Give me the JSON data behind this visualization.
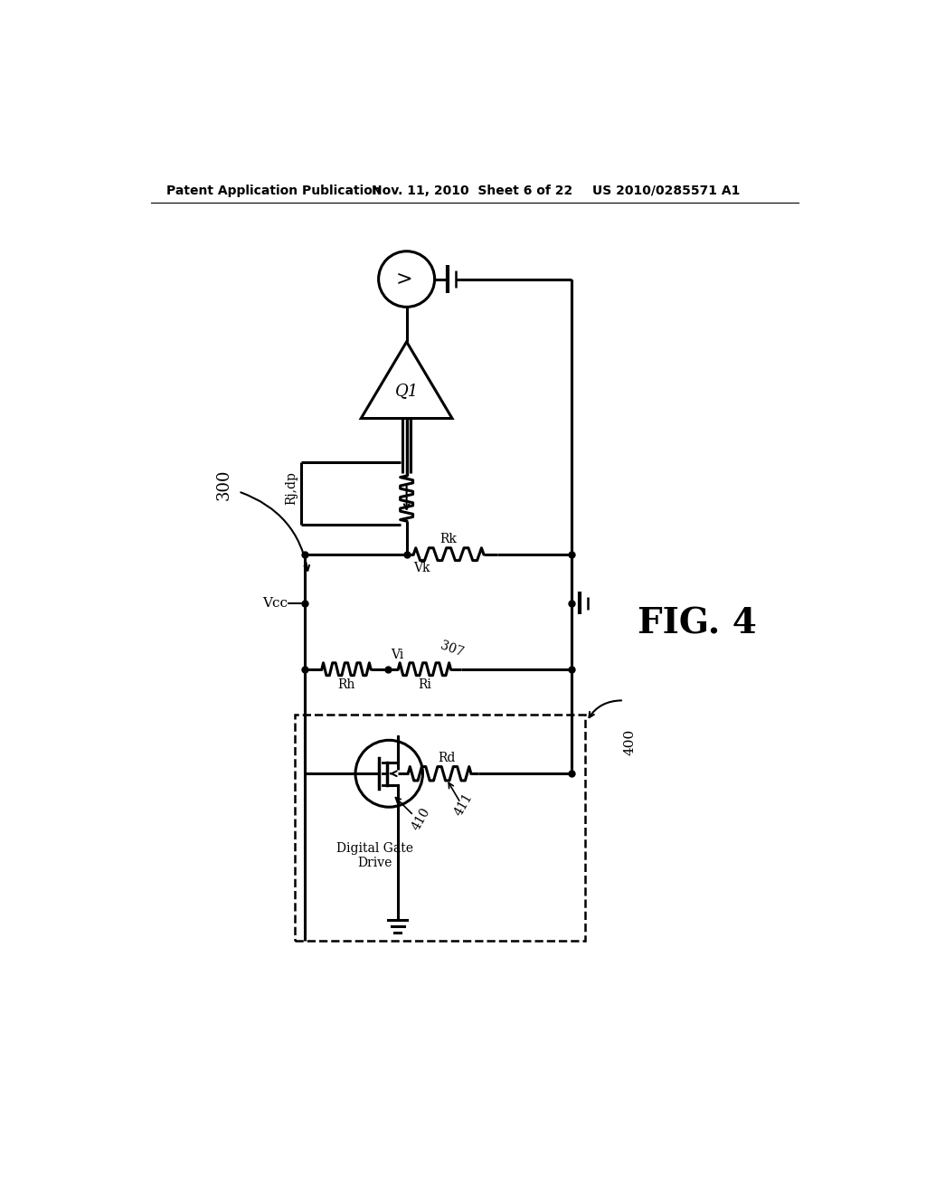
{
  "bg_color": "#ffffff",
  "line_color": "#000000",
  "header_text": "Patent Application Publication",
  "header_date": "Nov. 11, 2010  Sheet 6 of 22",
  "header_patent": "US 2010/0285571 A1",
  "fig_label": "FIG. 4",
  "label_300": "300",
  "label_400": "400",
  "label_Vcc": "Vcc",
  "label_Q1": "Q1",
  "label_Rjdp": "Rj,dp",
  "label_Rk": "Rk",
  "label_Vk": "Vk",
  "label_Rh": "Rh",
  "label_Ri": "Ri",
  "label_Vi": "Vi",
  "label_307": "307",
  "label_Rd": "Rd",
  "label_410": "410",
  "label_411": "411",
  "label_digital_gate": "Digital Gate\nDrive"
}
